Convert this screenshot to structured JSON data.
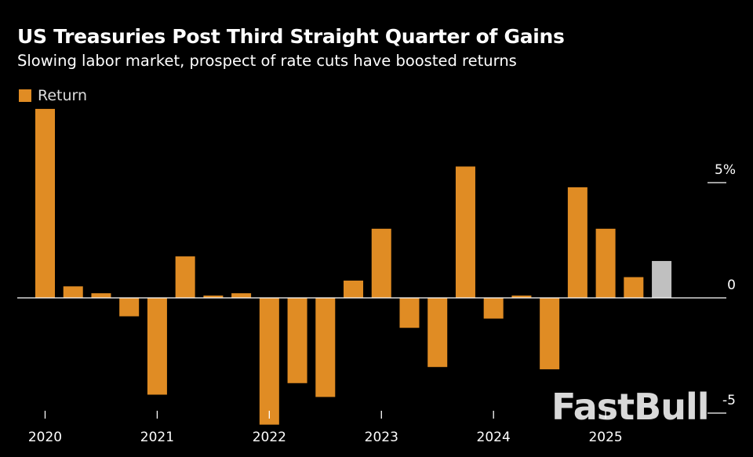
{
  "header": {
    "title": "US Treasuries Post Third Straight Quarter of Gains",
    "subtitle": "Slowing labor market, prospect of rate cuts have boosted returns"
  },
  "watermark": "FastBull",
  "chart_data": {
    "type": "bar",
    "title": "US Treasuries Post Third Straight Quarter of Gains",
    "subtitle": "Slowing labor market, prospect of rate cuts have boosted returns",
    "legend": {
      "position": "top-left",
      "entries": [
        "Return"
      ]
    },
    "categories": [
      "2020 Q1",
      "2020 Q2",
      "2020 Q3",
      "2020 Q4",
      "2021 Q1",
      "2021 Q2",
      "2021 Q3",
      "2021 Q4",
      "2022 Q1",
      "2022 Q2",
      "2022 Q3",
      "2022 Q4",
      "2023 Q1",
      "2023 Q2",
      "2023 Q3",
      "2023 Q4",
      "2024 Q1",
      "2024 Q2",
      "2024 Q3",
      "2024 Q4",
      "2025 Q1",
      "2025 Q2",
      "2025 Q3"
    ],
    "series": [
      {
        "name": "Return",
        "values": [
          8.2,
          0.5,
          0.2,
          -0.8,
          -4.2,
          1.8,
          0.1,
          0.2,
          -5.5,
          -3.7,
          -4.3,
          0.75,
          3.0,
          -1.3,
          -3.0,
          5.7,
          -0.9,
          0.1,
          -3.1,
          4.8,
          3.0,
          0.9,
          1.6
        ]
      }
    ],
    "highlight_index": 22,
    "colors": {
      "bar": "#e08c24",
      "highlight": "#c0c0c0",
      "axis": "#ffffff",
      "background": "#000000"
    },
    "x_tick_labels": [
      "2020",
      "2021",
      "2022",
      "2023",
      "2024",
      "2025"
    ],
    "y_ticks": [
      {
        "value": 5,
        "label": "5%"
      },
      {
        "value": 0,
        "label": "0"
      },
      {
        "value": -5,
        "label": "-5"
      }
    ],
    "ylim": [
      -5.5,
      8.2
    ],
    "xlabel": "",
    "ylabel": "",
    "grid": false,
    "y_axis_side": "right"
  }
}
